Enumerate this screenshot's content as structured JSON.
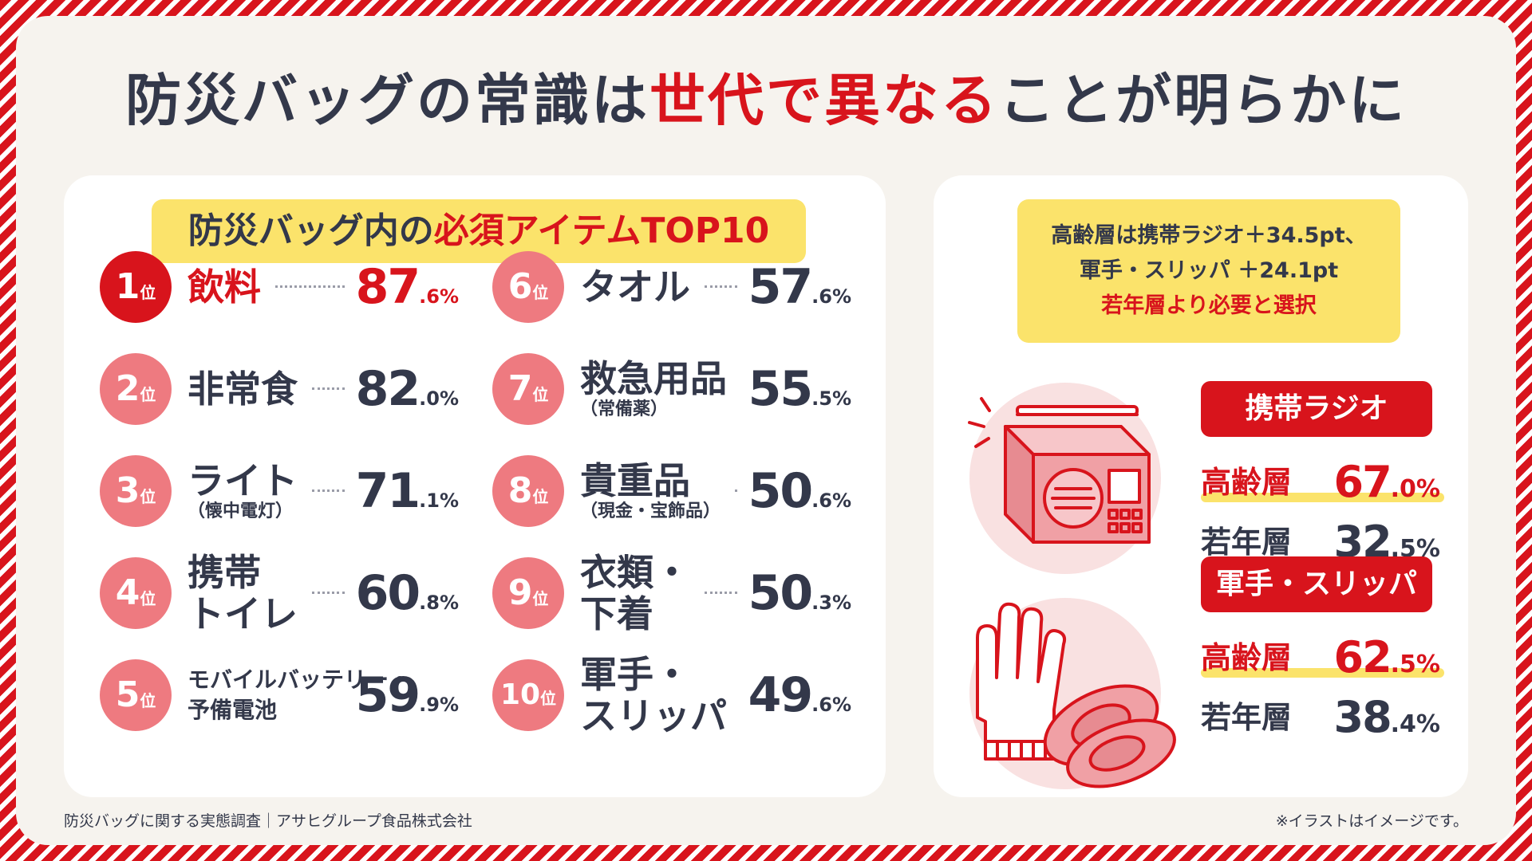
{
  "title": {
    "part1": "防災バッグの常識は",
    "highlight": "世代で異なる",
    "part2": "ことが明らかに"
  },
  "top10": {
    "banner_part1": "防災バッグ内の",
    "banner_highlight": "必須アイテムTOP10",
    "rank_unit": "位",
    "items": [
      {
        "rank": "1",
        "name": "飲料",
        "sub": "",
        "int": "87",
        "dec": ".6%"
      },
      {
        "rank": "2",
        "name": "非常食",
        "sub": "",
        "int": "82",
        "dec": ".0%"
      },
      {
        "rank": "3",
        "name": "ライト",
        "sub": "（懐中電灯）",
        "int": "71",
        "dec": ".1%"
      },
      {
        "rank": "4",
        "name": "携帯\nトイレ",
        "sub": "",
        "int": "60",
        "dec": ".8%"
      },
      {
        "rank": "5",
        "name": "モバイルバッテリー・\n予備電池",
        "sub": "",
        "int": "59",
        "dec": ".9%"
      },
      {
        "rank": "6",
        "name": "タオル",
        "sub": "",
        "int": "57",
        "dec": ".6%"
      },
      {
        "rank": "7",
        "name": "救急用品",
        "sub": "（常備薬）",
        "int": "55",
        "dec": ".5%"
      },
      {
        "rank": "8",
        "name": "貴重品",
        "sub": "（現金・宝飾品）",
        "int": "50",
        "dec": ".6%"
      },
      {
        "rank": "9",
        "name": "衣類・\n下着",
        "sub": "",
        "int": "50",
        "dec": ".3%"
      },
      {
        "rank": "10",
        "name": "軍手・\nスリッパ",
        "sub": "",
        "int": "49",
        "dec": ".6%"
      }
    ]
  },
  "info": {
    "line1": "高齢層は携帯ラジオ＋34.5pt、",
    "line2": "軍手・スリッパ ＋24.1pt",
    "line3": "若年層より必要と選択"
  },
  "radio": {
    "label": "携帯ラジオ",
    "senior_label": "高齢層",
    "senior_int": "67",
    "senior_dec": ".0%",
    "young_label": "若年層",
    "young_int": "32",
    "young_dec": ".5%"
  },
  "gloves": {
    "label": "軍手・スリッパ",
    "senior_label": "高齢層",
    "senior_int": "62",
    "senior_dec": ".5%",
    "young_label": "若年層",
    "young_int": "38",
    "young_dec": ".4%"
  },
  "footer": {
    "source": "防災バッグに関する実態調査｜アサヒグループ食品株式会社",
    "note": "※イラストはイメージです。"
  },
  "colors": {
    "accent": "#d8141c",
    "badge": "#ee7a80",
    "highlight": "#fbe36b",
    "text": "#33384a",
    "panel_bg": "#f6f3ee"
  }
}
